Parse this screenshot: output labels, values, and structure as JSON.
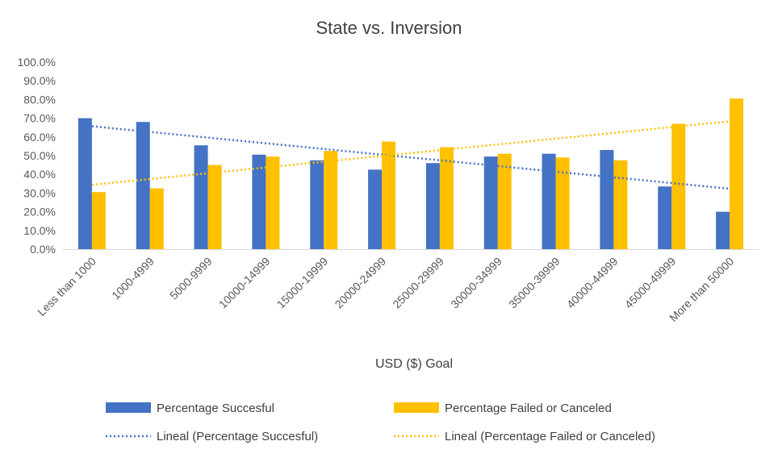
{
  "chart_data": {
    "type": "bar",
    "title": "State vs. Inversion",
    "xlabel": "USD ($) Goal",
    "ylabel": "",
    "ylim": [
      0,
      100
    ],
    "y_ticks": [
      "0.0%",
      "10.0%",
      "20.0%",
      "30.0%",
      "40.0%",
      "50.0%",
      "60.0%",
      "70.0%",
      "80.0%",
      "90.0%",
      "100.0%"
    ],
    "categories": [
      "Less than 1000",
      "1000-4999",
      "5000-9999",
      "10000-14999",
      "15000-19999",
      "20000-24999",
      "25000-29999",
      "30000-34999",
      "35000-39999",
      "40000-44999",
      "45000-49999",
      "More than 50000"
    ],
    "series": [
      {
        "name": "Percentage Succesful",
        "color": "#4472C4",
        "values": [
          70.0,
          68.0,
          55.5,
          50.5,
          47.5,
          42.5,
          46.0,
          49.5,
          51.0,
          53.0,
          33.5,
          20.0
        ]
      },
      {
        "name": "Percentage Failed or Canceled",
        "color": "#FFC000",
        "values": [
          30.5,
          32.5,
          45.0,
          49.5,
          52.5,
          57.5,
          54.5,
          51.0,
          49.0,
          47.5,
          67.0,
          80.5
        ]
      }
    ],
    "trendlines": [
      {
        "name": "Lineal (Percentage Succesful)",
        "color": "#4472C4",
        "start": 65.7,
        "end": 32.3
      },
      {
        "name": "Lineal (Percentage Failed or Canceled)",
        "color": "#FFC000",
        "start": 34.4,
        "end": 68.3
      }
    ],
    "grid": false,
    "legend": "bottom"
  }
}
